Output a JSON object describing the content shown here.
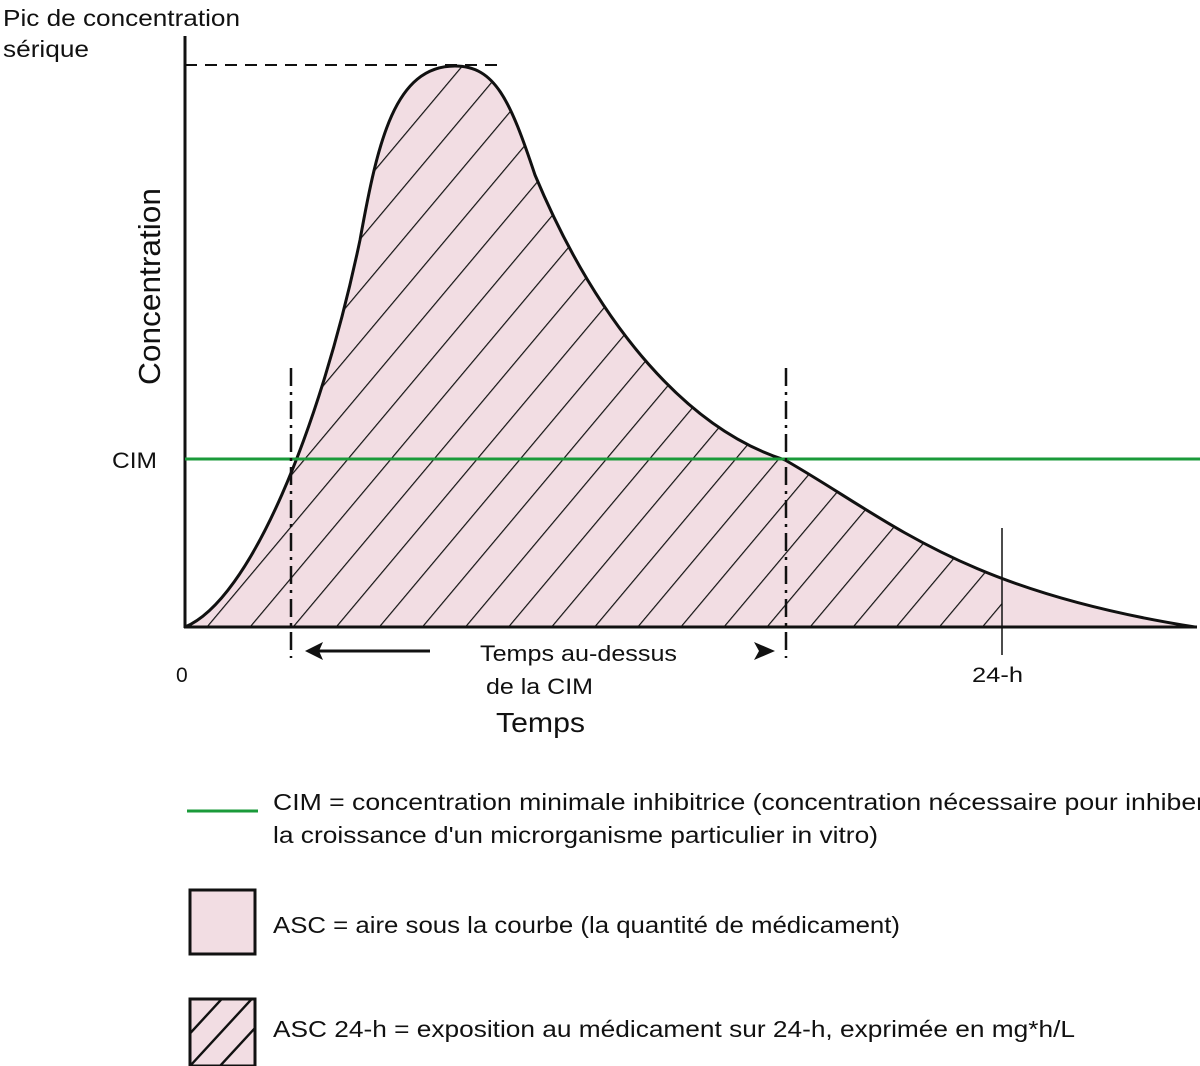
{
  "labels": {
    "peak_line1": "Pic de concentration",
    "peak_line2": "sérique",
    "y_axis": "Concentration",
    "mic": "CIM",
    "x_zero": "0",
    "x_24h": "24-h",
    "time_above_line1": "Temps au-dessus",
    "time_above_line2": "de la CIM",
    "x_axis": "Temps"
  },
  "legend": {
    "mic_line1": "CIM = concentration minimale inhibitrice (concentration nécessaire pour inhiber",
    "mic_line2": "la croissance d'un microrganisme particulier in vitro)",
    "auc": "ASC = aire sous la courbe (la quantité de médicament)",
    "auc24": "ASC 24-h  = exposition au médicament sur 24-h, exprimée en mg*h/L"
  },
  "colors": {
    "mic_line": "#1a9a3a",
    "auc_fill": "#f2dde3",
    "stroke": "#111111"
  }
}
